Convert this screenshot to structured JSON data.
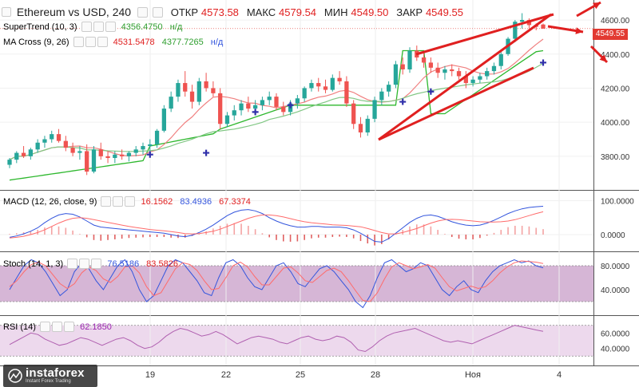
{
  "header": {
    "title": "Ethereum vs USD, 240",
    "open_label": "ОТКР",
    "open_value": "4573.58",
    "high_label": "МАКС",
    "high_value": "4579.54",
    "low_label": "МИН",
    "low_value": "4549.50",
    "close_label": "ЗАКР",
    "close_value": "4549.55"
  },
  "indicators": {
    "supertrend": {
      "label": "SuperTrend (10, 3)",
      "value": "4356.4750",
      "extra": "н/д"
    },
    "ma_cross": {
      "label": "MA Cross (9, 26)",
      "value1": "4531.5478",
      "value2": "4377.7265",
      "extra": "н/д"
    },
    "macd": {
      "label": "MACD (12, 26, close, 9)",
      "hist": "16.1562",
      "macd": "83.4936",
      "signal": "67.3374"
    },
    "stoch": {
      "label": "Stoch (14, 1, 3)",
      "k": "76.5186",
      "d": "83.5826"
    },
    "rsi": {
      "label": "RSI (14)",
      "value": "62.1850"
    }
  },
  "price_badge": "4549.55",
  "logo": {
    "name": "instaforex",
    "tagline": "Instant Forex Trading"
  },
  "colors": {
    "bull": "#26a69a",
    "bear": "#ef5350",
    "supertrend": "#2eb82e",
    "ma_fast": "#f08080",
    "ma_slow": "#81c784",
    "macd_line": "#3355dd",
    "signal_line": "#ff6b6b",
    "stoch_band": "#c89ec8",
    "rsi_band": "#e8d0e8",
    "rsi_line": "#b060b0",
    "annotation": "#e02020",
    "cross_marker": "#3030aa"
  },
  "chart_data": [
    {
      "type": "candlestick",
      "title": "Ethereum vs USD, 240",
      "price_axis": [
        3800,
        4000,
        4200,
        4400,
        4600
      ],
      "price_tick_labels": [
        "3800.00",
        "4000.00",
        "4200.00",
        "4400.00",
        "4600.00"
      ],
      "ylim": [
        3640,
        4680
      ],
      "date_tick_labels": [
        "19",
        "22",
        "25",
        "28",
        "Ноя",
        "4"
      ],
      "last_price": 4549.55,
      "candles": [
        [
          3750,
          3790,
          3730,
          3780
        ],
        [
          3780,
          3830,
          3760,
          3820
        ],
        [
          3820,
          3860,
          3790,
          3800
        ],
        [
          3800,
          3850,
          3780,
          3840
        ],
        [
          3840,
          3900,
          3820,
          3880
        ],
        [
          3880,
          3920,
          3850,
          3900
        ],
        [
          3900,
          3950,
          3880,
          3930
        ],
        [
          3930,
          3960,
          3880,
          3890
        ],
        [
          3890,
          3920,
          3830,
          3850
        ],
        [
          3850,
          3880,
          3800,
          3820
        ],
        [
          3820,
          3860,
          3780,
          3830
        ],
        [
          3830,
          3870,
          3690,
          3710
        ],
        [
          3710,
          3860,
          3700,
          3840
        ],
        [
          3840,
          3880,
          3780,
          3800
        ],
        [
          3800,
          3830,
          3760,
          3790
        ],
        [
          3790,
          3830,
          3760,
          3810
        ],
        [
          3810,
          3840,
          3780,
          3800
        ],
        [
          3800,
          3830,
          3770,
          3820
        ],
        [
          3820,
          3860,
          3800,
          3840
        ],
        [
          3840,
          3880,
          3810,
          3860
        ],
        [
          3860,
          3900,
          3830,
          3870
        ],
        [
          3870,
          3960,
          3850,
          3950
        ],
        [
          3950,
          4100,
          3940,
          4080
        ],
        [
          4080,
          4180,
          4060,
          4150
        ],
        [
          4150,
          4250,
          4120,
          4230
        ],
        [
          4230,
          4300,
          4150,
          4180
        ],
        [
          4180,
          4220,
          4080,
          4120
        ],
        [
          4120,
          4260,
          4100,
          4240
        ],
        [
          4240,
          4290,
          4180,
          4200
        ],
        [
          4200,
          4240,
          4150,
          4170
        ],
        [
          4170,
          4200,
          3960,
          3990
        ],
        [
          3990,
          4060,
          3970,
          4040
        ],
        [
          4040,
          4100,
          4010,
          4070
        ],
        [
          4070,
          4130,
          4040,
          4110
        ],
        [
          4110,
          4150,
          4060,
          4080
        ],
        [
          4080,
          4130,
          4040,
          4100
        ],
        [
          4100,
          4150,
          4070,
          4130
        ],
        [
          4130,
          4180,
          4100,
          4150
        ],
        [
          4150,
          4170,
          4070,
          4090
        ],
        [
          4090,
          4120,
          4040,
          4060
        ],
        [
          4060,
          4130,
          4040,
          4110
        ],
        [
          4110,
          4160,
          4080,
          4140
        ],
        [
          4140,
          4210,
          4120,
          4200
        ],
        [
          4200,
          4250,
          4180,
          4230
        ],
        [
          4230,
          4260,
          4180,
          4210
        ],
        [
          4210,
          4250,
          4170,
          4190
        ],
        [
          4190,
          4280,
          4180,
          4260
        ],
        [
          4260,
          4300,
          4220,
          4240
        ],
        [
          4240,
          4270,
          4090,
          4110
        ],
        [
          4110,
          4130,
          3960,
          3990
        ],
        [
          3990,
          4030,
          3910,
          3940
        ],
        [
          3940,
          4040,
          3920,
          4020
        ],
        [
          4020,
          4150,
          4000,
          4130
        ],
        [
          4130,
          4200,
          4100,
          4180
        ],
        [
          4180,
          4240,
          4150,
          4220
        ],
        [
          4220,
          4360,
          4200,
          4340
        ],
        [
          4340,
          4380,
          4280,
          4310
        ],
        [
          4310,
          4440,
          4290,
          4420
        ],
        [
          4420,
          4450,
          4360,
          4380
        ],
        [
          4380,
          4420,
          4320,
          4350
        ],
        [
          4350,
          4380,
          4290,
          4320
        ],
        [
          4320,
          4350,
          4260,
          4290
        ],
        [
          4290,
          4330,
          4250,
          4310
        ],
        [
          4310,
          4340,
          4270,
          4300
        ],
        [
          4300,
          4320,
          4250,
          4270
        ],
        [
          4270,
          4300,
          4200,
          4230
        ],
        [
          4230,
          4270,
          4210,
          4250
        ],
        [
          4250,
          4290,
          4230,
          4270
        ],
        [
          4270,
          4320,
          4250,
          4300
        ],
        [
          4300,
          4350,
          4280,
          4330
        ],
        [
          4330,
          4420,
          4310,
          4400
        ],
        [
          4400,
          4500,
          4390,
          4490
        ],
        [
          4490,
          4600,
          4470,
          4590
        ],
        [
          4590,
          4640,
          4550,
          4600
        ],
        [
          4600,
          4610,
          4550,
          4570
        ],
        [
          4570,
          4580,
          4540,
          4560
        ],
        [
          4573.58,
          4579.54,
          4549.5,
          4549.55
        ]
      ]
    },
    {
      "type": "line",
      "title": "MACD (12, 26, close, 9)",
      "ylim": [
        -40,
        120
      ],
      "tick_labels": [
        "100.0000",
        "0.0000"
      ],
      "tick_values": [
        100,
        0
      ],
      "series": [
        {
          "name": "MACD",
          "values": [
            -8,
            -4,
            2,
            10,
            20,
            35,
            48,
            58,
            62,
            60,
            52,
            40,
            28,
            22,
            20,
            18,
            16,
            14,
            12,
            10,
            8,
            6,
            4,
            0,
            -4,
            -6,
            -2,
            6,
            16,
            28,
            42,
            56,
            66,
            72,
            74,
            70,
            62,
            50,
            40,
            32,
            26,
            22,
            22,
            24,
            24,
            22,
            22,
            22,
            20,
            14,
            4,
            -8,
            -20,
            -22,
            -12,
            4,
            20,
            36,
            48,
            56,
            58,
            54,
            46,
            38,
            32,
            28,
            26,
            28,
            34,
            42,
            52,
            62,
            70,
            76,
            80,
            82,
            83.49
          ]
        },
        {
          "name": "Signal",
          "values": [
            -10,
            -8,
            -5,
            0,
            6,
            14,
            24,
            34,
            42,
            48,
            50,
            48,
            44,
            40,
            36,
            32,
            28,
            24,
            21,
            18,
            15,
            13,
            11,
            9,
            6,
            3,
            2,
            3,
            6,
            10,
            16,
            24,
            32,
            40,
            48,
            54,
            58,
            58,
            56,
            52,
            47,
            42,
            38,
            35,
            33,
            31,
            29,
            28,
            27,
            25,
            23,
            18,
            12,
            6,
            2,
            2,
            6,
            12,
            18,
            26,
            34,
            40,
            44,
            45,
            44,
            42,
            40,
            38,
            37,
            37,
            38,
            40,
            44,
            50,
            56,
            62,
            67.34
          ]
        },
        {
          "name": "Histogram",
          "values": [
            2,
            4,
            7,
            10,
            14,
            21,
            24,
            24,
            20,
            12,
            2,
            -8,
            -16,
            -18,
            -16,
            -14,
            -12,
            -10,
            -9,
            -8,
            -7,
            -7,
            -7,
            -9,
            -10,
            -9,
            -4,
            3,
            10,
            18,
            26,
            32,
            34,
            32,
            26,
            16,
            4,
            -8,
            -16,
            -20,
            -21,
            -20,
            -16,
            -11,
            -9,
            -9,
            -7,
            -6,
            -7,
            -11,
            -19,
            -26,
            -32,
            -28,
            -14,
            2,
            14,
            24,
            30,
            30,
            24,
            14,
            2,
            -7,
            -12,
            -14,
            -14,
            -10,
            -3,
            5,
            14,
            22,
            26,
            26,
            24,
            20,
            16.16
          ]
        }
      ]
    },
    {
      "type": "line",
      "title": "Stoch (14, 1, 3)",
      "ylim": [
        0,
        100
      ],
      "band": [
        20,
        80
      ],
      "tick_labels": [
        "80.0000",
        "40.0000"
      ],
      "tick_values": [
        80,
        40
      ],
      "series": [
        {
          "name": "%K",
          "values": [
            40,
            60,
            80,
            90,
            85,
            70,
            50,
            30,
            40,
            70,
            85,
            75,
            55,
            40,
            60,
            80,
            90,
            70,
            40,
            20,
            30,
            55,
            80,
            90,
            85,
            70,
            55,
            35,
            30,
            60,
            85,
            90,
            80,
            60,
            45,
            40,
            60,
            80,
            85,
            70,
            50,
            45,
            60,
            75,
            80,
            70,
            55,
            40,
            20,
            10,
            30,
            60,
            85,
            90,
            80,
            70,
            75,
            85,
            80,
            60,
            40,
            30,
            45,
            55,
            40,
            35,
            55,
            70,
            80,
            85,
            90,
            85,
            88,
            80,
            76.5
          ]
        },
        {
          "name": "%D",
          "values": [
            45,
            55,
            70,
            82,
            86,
            80,
            65,
            50,
            42,
            50,
            68,
            78,
            72,
            58,
            52,
            62,
            78,
            80,
            68,
            45,
            30,
            35,
            55,
            75,
            85,
            82,
            72,
            55,
            40,
            42,
            60,
            80,
            86,
            78,
            62,
            48,
            48,
            62,
            76,
            78,
            68,
            55,
            52,
            62,
            72,
            76,
            70,
            55,
            38,
            22,
            20,
            35,
            58,
            78,
            85,
            80,
            75,
            78,
            82,
            76,
            60,
            45,
            38,
            42,
            46,
            42,
            45,
            55,
            68,
            78,
            85,
            88,
            87,
            86,
            83.6
          ]
        }
      ]
    },
    {
      "type": "line",
      "title": "RSI (14)",
      "ylim": [
        20,
        80
      ],
      "band": [
        30,
        70
      ],
      "tick_labels": [
        "60.0000",
        "40.0000"
      ],
      "tick_values": [
        60,
        40
      ],
      "series": [
        {
          "name": "RSI",
          "values": [
            45,
            50,
            55,
            60,
            58,
            52,
            48,
            44,
            46,
            50,
            54,
            52,
            48,
            44,
            48,
            52,
            54,
            50,
            44,
            40,
            42,
            48,
            56,
            62,
            66,
            64,
            60,
            56,
            58,
            62,
            58,
            52,
            46,
            50,
            54,
            56,
            54,
            52,
            48,
            46,
            50,
            54,
            56,
            52,
            50,
            52,
            56,
            54,
            48,
            38,
            36,
            42,
            50,
            56,
            60,
            62,
            64,
            66,
            62,
            58,
            54,
            50,
            48,
            50,
            48,
            46,
            50,
            54,
            58,
            62,
            66,
            70,
            68,
            66,
            64,
            62.185
          ]
        }
      ]
    }
  ]
}
